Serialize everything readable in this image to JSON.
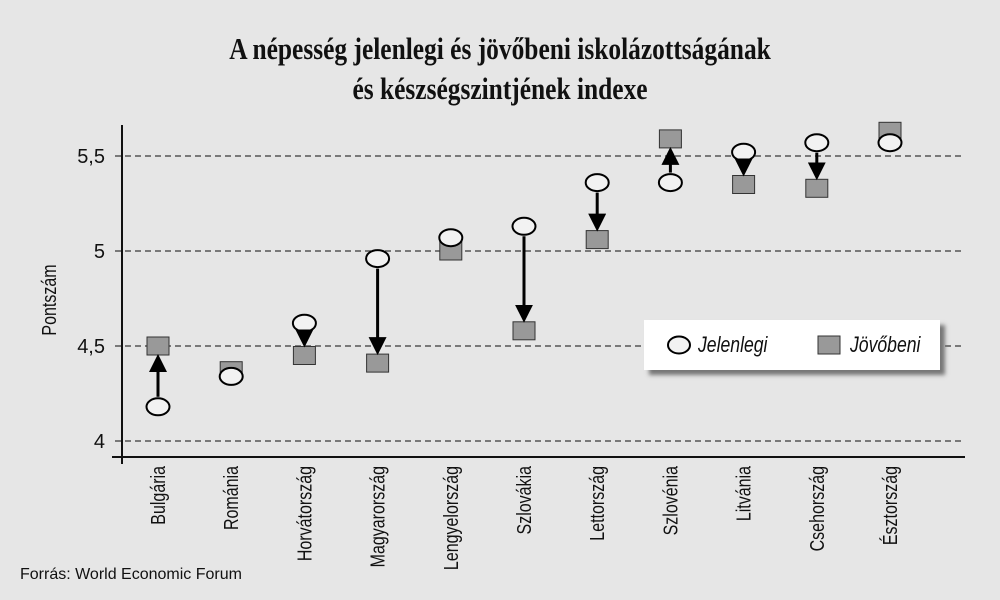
{
  "chart_data": {
    "type": "scatter",
    "title_line1": "A népesség jelenlegi és jövőbeni iskolázottságának",
    "title_line2": "és készségszintjének indexe",
    "ylabel": "Pontszám",
    "xlabel": "",
    "ylim": [
      3.9,
      5.7
    ],
    "yticks": [
      4,
      4.5,
      5,
      5.5
    ],
    "ytick_labels": [
      "4",
      "4,5",
      "5",
      "5,5"
    ],
    "grid": "horizontal-dashed",
    "legend_position": "right",
    "categories": [
      "Bulgária",
      "Románia",
      "Horvátország",
      "Magyarország",
      "Lengyelország",
      "Szlovákia",
      "Lettország",
      "Szlovénia",
      "Litvánia",
      "Csehország",
      "Észtország"
    ],
    "series": [
      {
        "name": "Jelenlegi",
        "marker": "circle",
        "color": "#f2f2f2",
        "values": [
          4.18,
          4.34,
          4.62,
          4.96,
          5.07,
          5.13,
          5.36,
          5.36,
          5.52,
          5.57,
          5.57
        ]
      },
      {
        "name": "Jövőbeni",
        "marker": "square",
        "color": "#999999",
        "values": [
          4.5,
          4.37,
          4.45,
          4.41,
          5.0,
          4.58,
          5.06,
          5.59,
          5.35,
          5.33,
          5.63
        ]
      }
    ]
  },
  "source": "Forrás: World Economic Forum"
}
